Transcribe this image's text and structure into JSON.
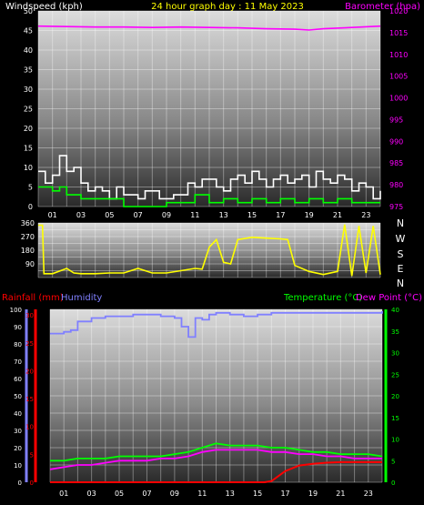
{
  "header": {
    "left_label": "Windspeed (kph)",
    "title": "24 hour graph day : 11 May 2023",
    "right_label": "Barometer (hpa)"
  },
  "colors": {
    "background": "#000000",
    "windspeed": "#ffffff",
    "gust_avg": "#00ff00",
    "barometer": "#ff00ff",
    "direction": "#ffff00",
    "rainfall": "#ff0000",
    "humidity": "#8080ff",
    "temperature": "#00ff00",
    "dew_point": "#ff00ff",
    "title": "#ffff00"
  },
  "wind_panel": {
    "direction_letters": [
      "N",
      "W",
      "S",
      "E",
      "N"
    ]
  },
  "bottom_panel": {
    "rain_label": "Rainfall (mm)",
    "humidity_label": "Humidity",
    "temp_label": "Temperature (°C)",
    "dew_label": "Dew Point (°C)"
  },
  "chart_data": [
    {
      "type": "line",
      "xlabel": "",
      "ylabel": "Windspeed (kph)",
      "y2label": "Barometer (hpa)",
      "xlim": [
        0,
        24
      ],
      "ylim": [
        0,
        50
      ],
      "y2lim": [
        975,
        1020
      ],
      "xticks": [
        "01",
        "03",
        "05",
        "07",
        "09",
        "11",
        "13",
        "15",
        "17",
        "19",
        "21",
        "23"
      ],
      "yticks": [
        0,
        5,
        10,
        15,
        20,
        25,
        30,
        35,
        40,
        45,
        50
      ],
      "y2ticks": [
        975,
        980,
        985,
        990,
        995,
        1000,
        1005,
        1010,
        1015,
        1020
      ],
      "grid": true,
      "series": [
        {
          "name": "Windspeed",
          "axis": "y",
          "x": [
            0,
            0.5,
            1,
            1.5,
            2,
            2.5,
            3,
            3.5,
            4,
            4.5,
            5,
            5.5,
            6,
            6.5,
            7,
            7.5,
            8,
            8.5,
            9,
            9.5,
            10,
            10.5,
            11,
            11.5,
            12,
            12.5,
            13,
            13.5,
            14,
            14.5,
            15,
            15.5,
            16,
            16.5,
            17,
            17.5,
            18,
            18.5,
            19,
            19.5,
            20,
            20.5,
            21,
            21.5,
            22,
            22.5,
            23,
            23.5,
            24
          ],
          "values": [
            9,
            6,
            8,
            13,
            9,
            10,
            6,
            4,
            5,
            4,
            2,
            5,
            3,
            3,
            2,
            4,
            4,
            2,
            2,
            3,
            3,
            6,
            5,
            7,
            7,
            5,
            4,
            7,
            8,
            6,
            9,
            7,
            5,
            7,
            8,
            6,
            7,
            8,
            5,
            9,
            7,
            6,
            8,
            7,
            4,
            6,
            5,
            2,
            4
          ]
        },
        {
          "name": "Average",
          "axis": "y",
          "x": [
            0,
            1,
            1.5,
            2,
            3,
            4,
            6,
            7,
            8,
            9,
            10,
            11,
            12,
            13,
            14,
            15,
            16,
            17,
            18,
            19,
            20,
            21,
            22,
            23,
            24
          ],
          "values": [
            5,
            4,
            5,
            3,
            2,
            2,
            0,
            0,
            0,
            1,
            1,
            3,
            1,
            2,
            1,
            2,
            1,
            2,
            1,
            2,
            1,
            2,
            1,
            1,
            1
          ]
        },
        {
          "name": "Barometer",
          "axis": "y2",
          "x": [
            0,
            2,
            4,
            6,
            8,
            10,
            12,
            14,
            16,
            18,
            19,
            20,
            22,
            24
          ],
          "values": [
            1016.5,
            1016.4,
            1016.3,
            1016.3,
            1016.2,
            1016.3,
            1016.2,
            1016.1,
            1015.9,
            1015.8,
            1015.6,
            1015.9,
            1016.2,
            1016.5
          ]
        }
      ]
    },
    {
      "type": "line",
      "xlabel": "",
      "ylabel": "",
      "xlim": [
        0,
        24
      ],
      "ylim": [
        0,
        360
      ],
      "yticks": [
        0,
        45,
        90,
        135,
        180,
        225,
        270,
        315,
        360
      ],
      "ytick_labels": [
        "",
        "",
        "90",
        "",
        "180",
        "",
        "270",
        "",
        "360"
      ],
      "grid": true,
      "series": [
        {
          "name": "Wind direction",
          "x": [
            0,
            0.3,
            0.4,
            1,
            2,
            2.5,
            3,
            4,
            5,
            6,
            7,
            8,
            9,
            10,
            11,
            11.5,
            12,
            12.5,
            13,
            13.5,
            14,
            15,
            16,
            17,
            17.5,
            18,
            19,
            20,
            21,
            21.5,
            22,
            22.5,
            23,
            23.5,
            24
          ],
          "values": [
            345,
            345,
            25,
            25,
            60,
            30,
            25,
            25,
            30,
            30,
            60,
            30,
            30,
            45,
            60,
            55,
            200,
            250,
            100,
            90,
            250,
            265,
            260,
            255,
            250,
            80,
            40,
            20,
            40,
            350,
            10,
            340,
            30,
            340,
            20
          ]
        }
      ]
    },
    {
      "type": "line",
      "xlabel": "",
      "ylabel": "Rainfall (mm) / Humidity",
      "y2label": "Temperature (°C) / Dew Point (°C)",
      "xlim": [
        0,
        24
      ],
      "ylim": [
        0,
        100
      ],
      "y2lim": [
        0,
        40
      ],
      "yticks": [
        0,
        10,
        20,
        30,
        40,
        50,
        60,
        70,
        80,
        90,
        100
      ],
      "rain_ticks": [
        0,
        5,
        10,
        15,
        20,
        25,
        30
      ],
      "y2ticks": [
        0,
        5,
        10,
        15,
        20,
        25,
        30,
        35,
        40
      ],
      "grid": true,
      "series": [
        {
          "name": "Humidity",
          "axis": "y",
          "x": [
            0,
            1,
            1.5,
            2,
            3,
            4,
            5,
            6,
            7,
            8,
            9,
            9.5,
            10,
            10.5,
            11,
            11.5,
            12,
            13,
            14,
            15,
            16,
            18,
            20,
            22,
            24
          ],
          "values": [
            86,
            87,
            88,
            93,
            95,
            96,
            96,
            97,
            97,
            96,
            95,
            90,
            84,
            95,
            94,
            97,
            98,
            97,
            96,
            97,
            98,
            98,
            98,
            98,
            99
          ]
        },
        {
          "name": "Temperature",
          "axis": "y2",
          "x": [
            0,
            1,
            2,
            3,
            4,
            5,
            6,
            7,
            8,
            9,
            10,
            11,
            12,
            13,
            14,
            15,
            16,
            17,
            18,
            19,
            20,
            21,
            22,
            23,
            24
          ],
          "values": [
            5,
            5,
            5.5,
            5.5,
            5.5,
            6,
            6,
            6,
            6,
            6.5,
            7,
            8,
            9,
            8.5,
            8.5,
            8.5,
            8,
            8,
            7.5,
            7,
            7,
            6.5,
            6.5,
            6.5,
            6
          ]
        },
        {
          "name": "Dew Point",
          "axis": "y2",
          "x": [
            0,
            1,
            2,
            3,
            4,
            5,
            6,
            7,
            8,
            9,
            10,
            11,
            12,
            13,
            14,
            15,
            16,
            17,
            18,
            19,
            20,
            21,
            22,
            23,
            24
          ],
          "values": [
            3,
            3.5,
            4,
            4,
            4.5,
            5,
            5,
            5,
            5.5,
            5.5,
            6,
            7,
            7.5,
            7.5,
            7.5,
            7.5,
            7,
            7,
            6.5,
            6.5,
            6,
            6,
            5.5,
            5.5,
            5.5
          ]
        },
        {
          "name": "Rainfall",
          "axis": "rain",
          "x": [
            0,
            15.5,
            16,
            17,
            18,
            19,
            20,
            21,
            22,
            23,
            24
          ],
          "values": [
            0,
            0,
            0.2,
            2,
            3,
            3.3,
            3.5,
            3.6,
            3.6,
            3.6,
            3.6
          ]
        }
      ]
    }
  ]
}
